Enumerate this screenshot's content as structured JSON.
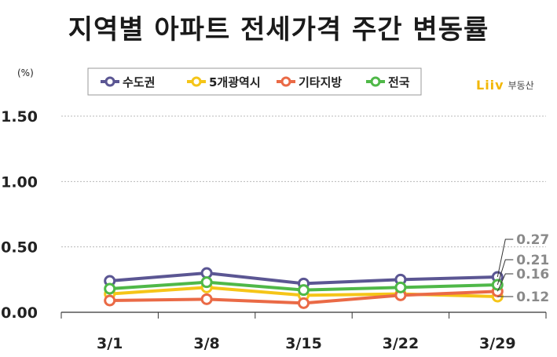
{
  "title": "지역별 아파트 전세가격 주간 변동률",
  "unit": "(%)",
  "brand": {
    "logo": "Liiv",
    "sub": "부동산"
  },
  "chart_data": {
    "type": "line",
    "categories": [
      "3/1",
      "3/8",
      "3/15",
      "3/22",
      "3/29"
    ],
    "ylim": [
      0,
      1.5
    ],
    "yticks": [
      0.0,
      0.5,
      1.0,
      1.5
    ],
    "ytick_labels": [
      "0.00",
      "0.50",
      "1.00",
      "1.50"
    ],
    "grid": true,
    "legend": "top-left",
    "series": [
      {
        "name": "수도권",
        "color": "#5b5693",
        "values": [
          0.24,
          0.3,
          0.22,
          0.25,
          0.27
        ]
      },
      {
        "name": "5개광역시",
        "color": "#f5c518",
        "values": [
          0.14,
          0.19,
          0.13,
          0.14,
          0.12
        ]
      },
      {
        "name": "기타지방",
        "color": "#ea6a46",
        "values": [
          0.09,
          0.1,
          0.07,
          0.13,
          0.16
        ]
      },
      {
        "name": "전국",
        "color": "#4fb848",
        "values": [
          0.18,
          0.23,
          0.17,
          0.19,
          0.21
        ]
      }
    ],
    "annotations": [
      "0.27",
      "0.21",
      "0.16",
      "0.12"
    ]
  }
}
